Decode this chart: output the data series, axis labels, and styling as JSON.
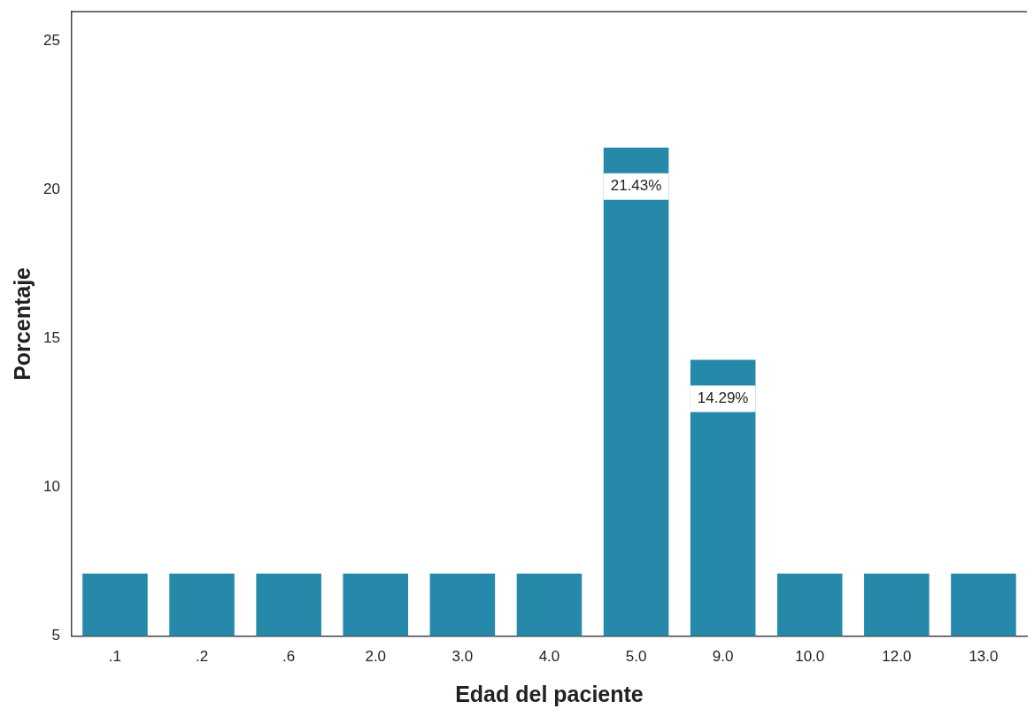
{
  "chart_data": {
    "type": "bar",
    "xlabel": "Edad del paciente",
    "ylabel": "Porcentaje",
    "categories": [
      ".1",
      ".2",
      ".6",
      "2.0",
      "3.0",
      "4.0",
      "5.0",
      "9.0",
      "10.0",
      "12.0",
      "13.0"
    ],
    "values": [
      7.1,
      7.1,
      7.1,
      7.1,
      7.1,
      7.1,
      21.43,
      14.29,
      7.1,
      7.1,
      7.1
    ],
    "value_labels": [
      null,
      null,
      null,
      null,
      null,
      null,
      "21.43%",
      "14.29%",
      null,
      null,
      null
    ],
    "color": "#2689aa",
    "ylim": [
      5,
      26
    ],
    "yticks": [
      5,
      10,
      15,
      20,
      25
    ],
    "grid": false,
    "legend": false
  }
}
